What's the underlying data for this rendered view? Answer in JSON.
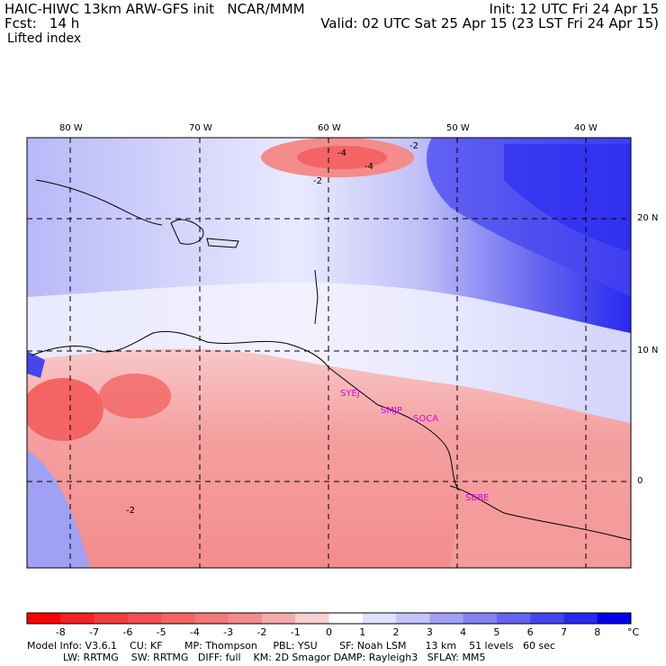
{
  "header": {
    "title": "HAIC-HIWC 13km ARW-GFS init   NCAR/MMM",
    "fcst": "Fcst:   14 h",
    "init": "Init: 12 UTC Fri 24 Apr 15",
    "valid": "Valid: 02 UTC Sat 25 Apr 15 (23 LST Fri 24 Apr 15)",
    "field": "Lifted index"
  },
  "map": {
    "lon_labels": [
      "80 W",
      "70 W",
      "60 W",
      "50 W",
      "40 W"
    ],
    "lat_labels": [
      "20 N",
      "10 N",
      "0"
    ],
    "stations": [
      "SYEJ",
      "SMJP",
      "SOCA",
      "SBBE"
    ],
    "contour_labels": [
      "-2",
      "-4",
      "-4",
      "-2",
      "-2"
    ]
  },
  "colorbar": {
    "ticks": [
      "-8",
      "-7",
      "-6",
      "-5",
      "-4",
      "-3",
      "-2",
      "-1",
      "0",
      "1",
      "2",
      "3",
      "4",
      "5",
      "6",
      "7",
      "8"
    ],
    "unit": "°C",
    "colors": [
      "#ff0000",
      "#f42222",
      "#f43c3c",
      "#f45050",
      "#f46464",
      "#f47878",
      "#f48c8c",
      "#f4aaaa",
      "#f8d0d0",
      "#ffffff",
      "#e0e0ff",
      "#c4c4fa",
      "#a0a0f4",
      "#8282f0",
      "#6464f0",
      "#4646f0",
      "#2828f0",
      "#0000f0"
    ]
  },
  "model_info": {
    "line1": "Model Info: V3.6.1    CU: KF       MP: Thompson     PBL: YSU       SF: Noah LSM      13 km    51 levels   60 sec",
    "line2": "LW: RRTMG    SW: RRTMG   DIFF: full    KM: 2D Smagor DAMP: Rayleigh3   SFLAY: MM5"
  }
}
